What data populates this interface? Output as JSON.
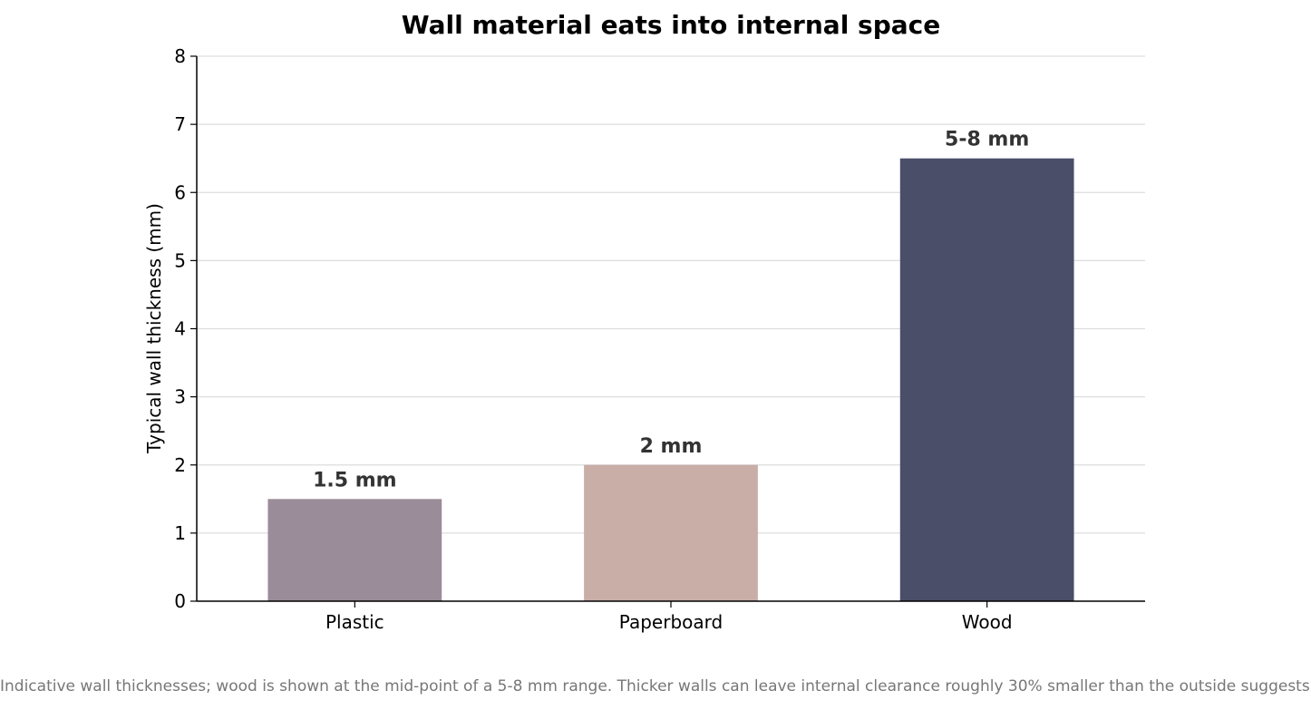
{
  "chart_data": {
    "type": "bar",
    "title": "Wall material eats into internal space",
    "xlabel": "",
    "ylabel": "Typical wall thickness (mm)",
    "categories": [
      "Plastic",
      "Paperboard",
      "Wood"
    ],
    "values": [
      1.5,
      2,
      6.5
    ],
    "data_labels": [
      "1.5 mm",
      "2 mm",
      "5-8 mm"
    ],
    "colors": [
      "#9a8c98",
      "#c9ada7",
      "#4a4e69"
    ],
    "ylim": [
      0,
      8
    ],
    "yticks": [
      "0",
      "1",
      "2",
      "3",
      "4",
      "5",
      "6",
      "7",
      "8"
    ],
    "grid": "horizontal",
    "legend": "none"
  },
  "caption": "Indicative wall thicknesses; wood is shown at the mid-point of a 5-8 mm range. Thicker walls can leave internal clearance roughly 30% smaller than the outside suggests."
}
